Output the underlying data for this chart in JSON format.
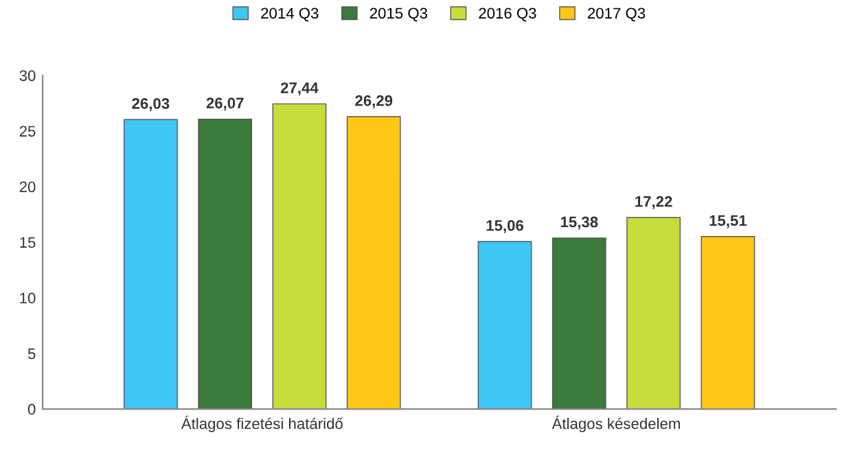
{
  "chart_data": {
    "type": "bar",
    "categories": [
      "Átlagos fizetési határidő",
      "Átlagos késedelem"
    ],
    "series": [
      {
        "name": "2014 Q3",
        "color": "#3ec6f5",
        "values": [
          26.03,
          15.06
        ],
        "value_labels": [
          "26,03",
          "15,06"
        ]
      },
      {
        "name": "2015 Q3",
        "color": "#3a7a3a",
        "values": [
          26.07,
          15.38
        ],
        "value_labels": [
          "26,07",
          "15,38"
        ]
      },
      {
        "name": "2016 Q3",
        "color": "#c8dc3c",
        "values": [
          27.44,
          17.22
        ],
        "value_labels": [
          "27,44",
          "17,22"
        ]
      },
      {
        "name": "2017 Q3",
        "color": "#ffc814",
        "values": [
          26.29,
          15.51
        ],
        "value_labels": [
          "26,29",
          "15,51"
        ]
      }
    ],
    "ylim": [
      0,
      30
    ],
    "yticks": [
      0,
      5,
      10,
      15,
      20,
      25,
      30
    ],
    "grid": false,
    "legend": "top"
  }
}
